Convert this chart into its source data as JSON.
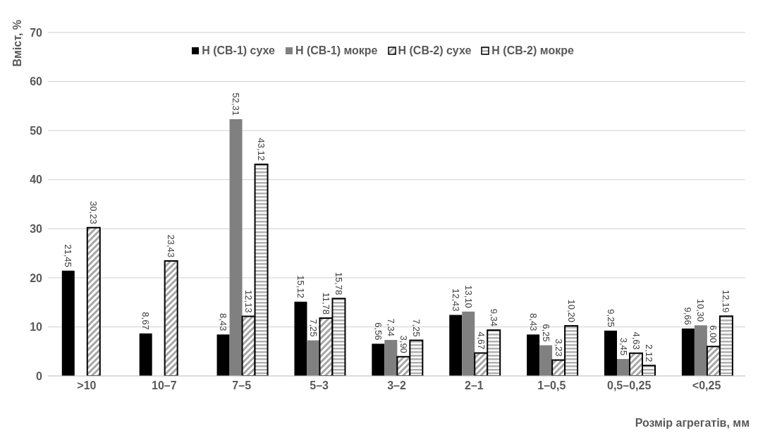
{
  "chart_data": {
    "type": "bar",
    "xlabel": "Розмір агрегатів, мм",
    "ylabel": "Вміст, %",
    "categories": [
      ">10",
      "10–7",
      "7–5",
      "5–3",
      "3–2",
      "2–1",
      "1–0,5",
      "0,5–0,25",
      "<0,25"
    ],
    "series": [
      {
        "name": "Н (СВ-1) сухе",
        "color": "#000000",
        "values": [
          21.45,
          8.67,
          8.43,
          15.12,
          6.56,
          12.43,
          8.43,
          9.25,
          9.66
        ],
        "value_labels": [
          "21,45",
          "8,67",
          "8,43",
          "15,12",
          "6,56",
          "12,43",
          "8,43",
          "9,25",
          "9,66"
        ]
      },
      {
        "name": "Н (СВ-1) мокре",
        "color": "#808080",
        "values": [
          null,
          null,
          52.31,
          7.25,
          7.34,
          13.1,
          6.25,
          3.45,
          10.3
        ],
        "value_labels": [
          null,
          null,
          "52,31",
          "7,25",
          "7,34",
          "13,10",
          "6,25",
          "3,45",
          "10,30"
        ]
      },
      {
        "name": "Н (СВ-2) сухе",
        "color": "#000000",
        "values": [
          30.23,
          23.43,
          12.13,
          11.78,
          3.9,
          4.67,
          3.23,
          4.63,
          6.0
        ],
        "value_labels": [
          "30,23",
          "23,43",
          "12,13",
          "11,78",
          "3,90",
          "4,67",
          "3,23",
          "4,63",
          "6,00"
        ]
      },
      {
        "name": "Н (СВ-2) мокре",
        "color": "#000001",
        "values": [
          null,
          null,
          43.12,
          15.78,
          7.25,
          9.34,
          10.2,
          2.12,
          12.19
        ],
        "value_labels": [
          null,
          null,
          "43,12",
          "15,78",
          "7,25",
          "9,34",
          "10,20",
          "2,12",
          "12,19"
        ]
      }
    ],
    "ylim": [
      0,
      70
    ],
    "yticks": [
      0,
      10,
      20,
      30,
      40,
      50,
      60,
      70
    ],
    "grid": "y",
    "legend": "top"
  }
}
